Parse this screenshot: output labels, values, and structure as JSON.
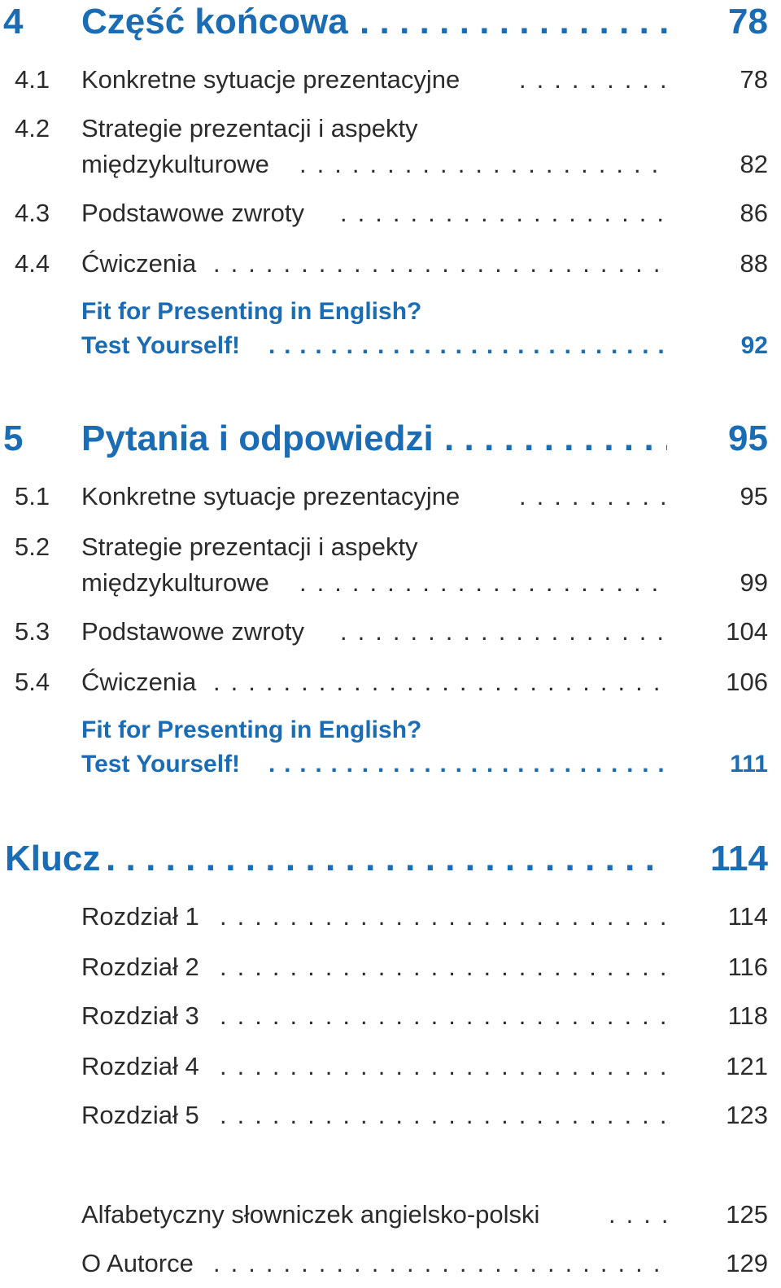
{
  "toc": {
    "ch4": {
      "number": "4",
      "title": "Część końcowa",
      "page": "78"
    },
    "s4_1": {
      "number": "4.1",
      "title": "Konkretne sytuacje prezentacyjne",
      "page": "78"
    },
    "s4_2": {
      "number": "4.2",
      "line1": "Strategie prezentacji i aspekty",
      "line2": "międzykulturowe",
      "page": "82"
    },
    "s4_3": {
      "number": "4.3",
      "title": "Podstawowe zwroty",
      "page": "86"
    },
    "s4_4": {
      "number": "4.4",
      "title": "Ćwiczenia",
      "page": "88"
    },
    "t4": {
      "line1": "Fit for Presenting in English?",
      "line2": "Test Yourself!",
      "page": "92"
    },
    "ch5": {
      "number": "5",
      "title": "Pytania i odpowiedzi",
      "page": "95"
    },
    "s5_1": {
      "number": "5.1",
      "title": "Konkretne sytuacje prezentacyjne",
      "page": "95"
    },
    "s5_2": {
      "number": "5.2",
      "line1": "Strategie prezentacji i aspekty",
      "line2": "międzykulturowe",
      "page": "99"
    },
    "s5_3": {
      "number": "5.3",
      "title": "Podstawowe zwroty",
      "page": "104"
    },
    "s5_4": {
      "number": "5.4",
      "title": "Ćwiczenia",
      "page": "106"
    },
    "t5": {
      "line1": "Fit for Presenting in English?",
      "line2": "Test Yourself!",
      "page": "111"
    },
    "key": {
      "title": "Klucz",
      "page": "114"
    },
    "r1": {
      "title": "Rozdział 1",
      "page": "114"
    },
    "r2": {
      "title": "Rozdział 2",
      "page": "116"
    },
    "r3": {
      "title": "Rozdział 3",
      "page": "118"
    },
    "r4": {
      "title": "Rozdział 4",
      "page": "121"
    },
    "r5": {
      "title": "Rozdział 5",
      "page": "123"
    },
    "gloss": {
      "title": "Alfabetyczny słowniczek angielsko-polski",
      "page": "125"
    },
    "author": {
      "title": "O Autorce",
      "page": "129"
    }
  },
  "colors": {
    "accent": "#1a6db5",
    "text": "#2b2b2b"
  }
}
